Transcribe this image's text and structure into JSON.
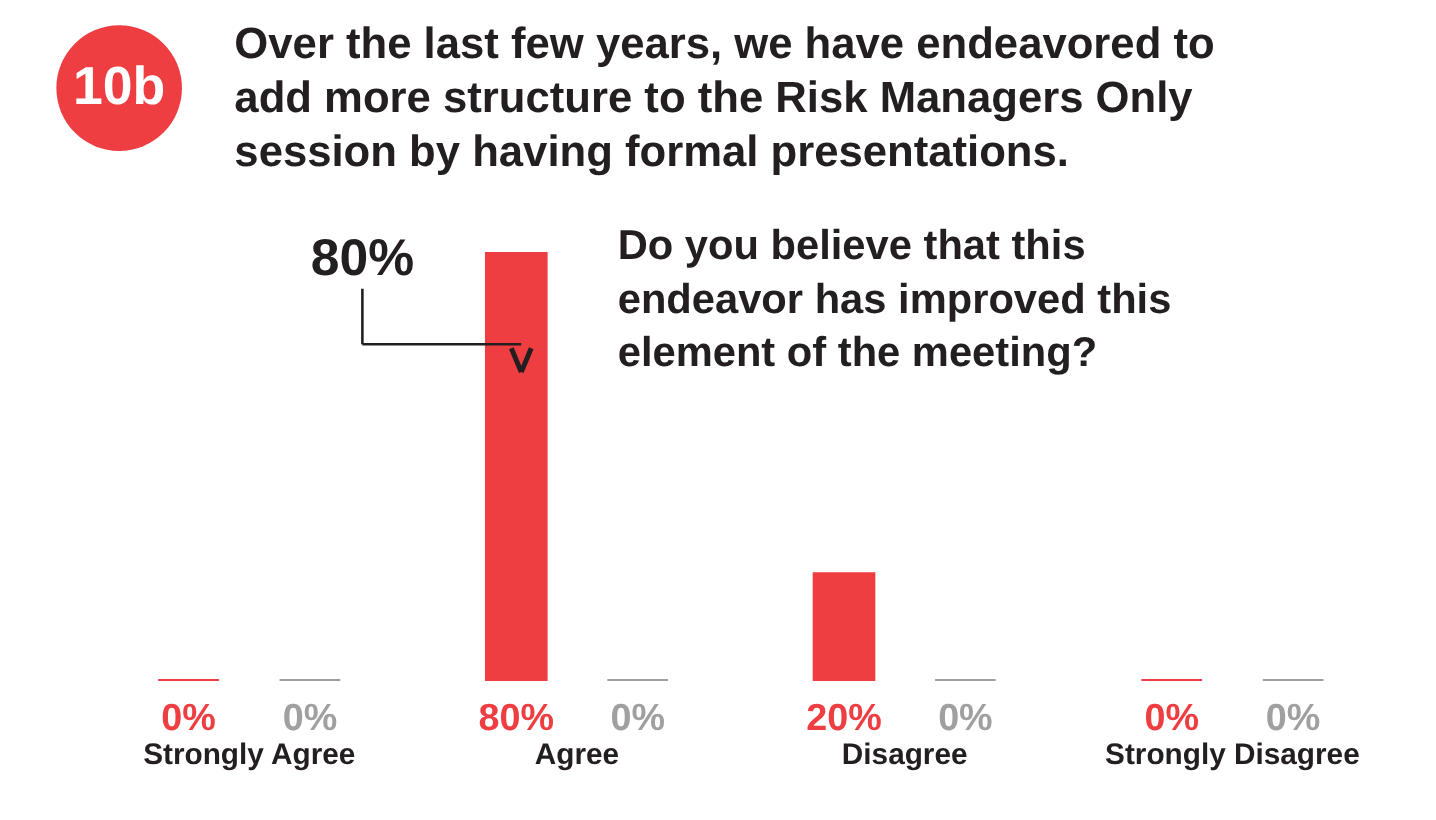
{
  "chart_data": {
    "type": "bar",
    "title": "Over the last few years, we have endeavored to add more structure to the Risk Managers Only session by having formal presentations.",
    "subtitle": "Do you believe that this endeavor has improved this element of the meeting?",
    "categories": [
      "Strongly Agree",
      "Agree",
      "Disagree",
      "Strongly Disagree"
    ],
    "series": [
      {
        "color": "#ee3e42",
        "values": [
          0,
          80,
          20,
          0
        ],
        "value_labels": [
          "0%",
          "80%",
          "20%",
          "0%"
        ]
      },
      {
        "color": "#a0a0a2",
        "values": [
          0,
          0,
          0,
          0
        ],
        "value_labels": [
          "0%",
          "0%",
          "0%",
          "0%"
        ]
      }
    ],
    "annotations": [
      "10b",
      "80%"
    ]
  }
}
